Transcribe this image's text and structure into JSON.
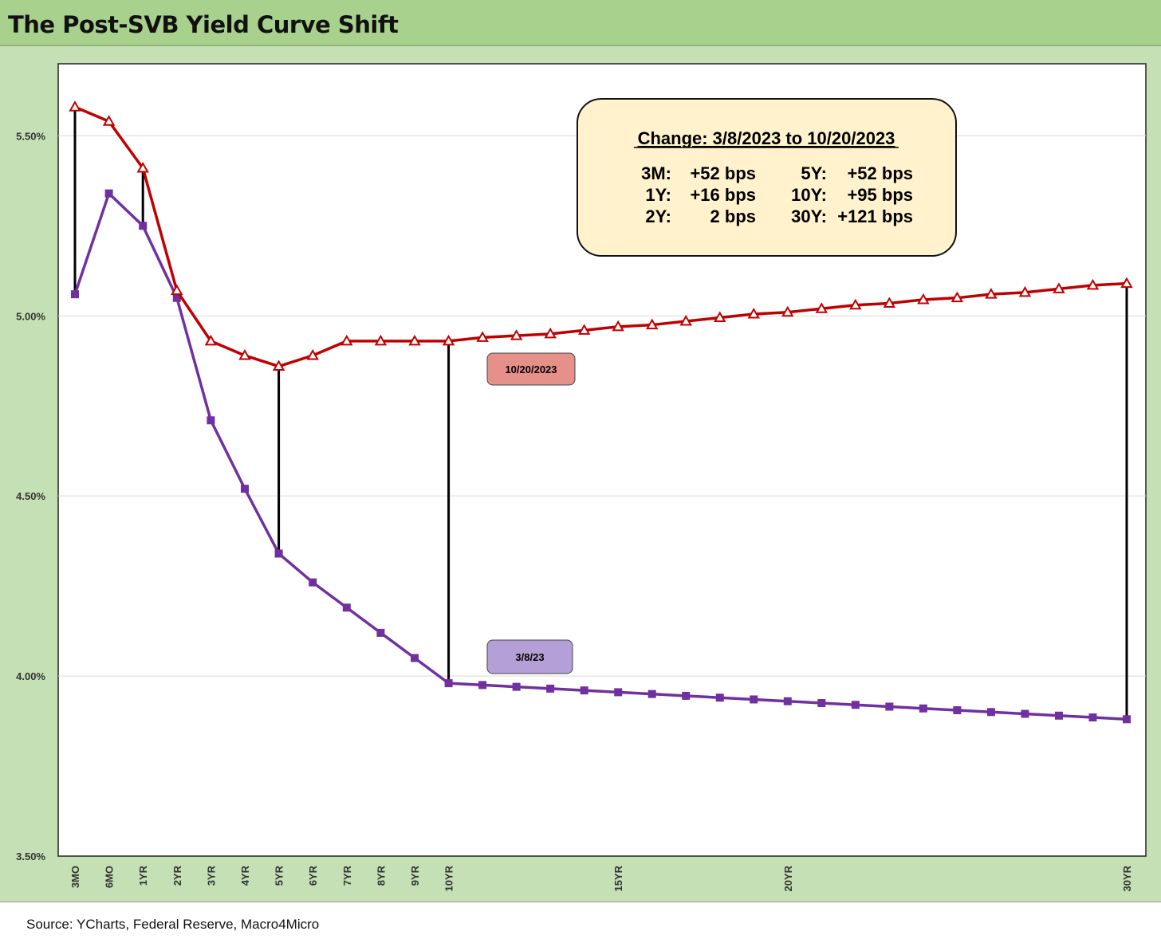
{
  "title": "The Post-SVB Yield Curve Shift",
  "source": "Source: YCharts, Federal Reserve, Macro4Micro",
  "colors": {
    "title_bg": "#a9d18e",
    "outer_bg": "#c5e0b4",
    "series_oct": "#c00000",
    "series_mar": "#7030a0",
    "annotation_bg": "#fff2cc",
    "tag_oct_bg": "#e6908a",
    "tag_mar_bg": "#b4a0d6"
  },
  "annotation": {
    "title": "Change: 3/8/2023 to 10/20/2023",
    "rows": [
      [
        "3M:",
        "+52 bps",
        "5Y:",
        "+52 bps"
      ],
      [
        "1Y:",
        "+16 bps",
        "10Y:",
        "+95 bps"
      ],
      [
        "2Y:",
        "2 bps",
        "30Y:",
        "+121 bps"
      ]
    ]
  },
  "chart_data": {
    "type": "line",
    "title": "The Post-SVB Yield Curve Shift",
    "grid": true,
    "ylim": [
      3.5,
      5.7
    ],
    "y_ticks": [
      "3.50%",
      "4.00%",
      "4.50%",
      "5.00%",
      "5.50%"
    ],
    "x": [
      "3MO",
      "6MO",
      "1YR",
      "2YR",
      "3YR",
      "4YR",
      "5YR",
      "6YR",
      "7YR",
      "8YR",
      "9YR",
      "10YR",
      "11YR",
      "12YR",
      "13YR",
      "14YR",
      "15YR",
      "16YR",
      "17YR",
      "18YR",
      "19YR",
      "20YR",
      "21YR",
      "22YR",
      "23YR",
      "24YR",
      "25YR",
      "26YR",
      "27YR",
      "28YR",
      "29YR",
      "30YR"
    ],
    "x_tick_labels_shown": [
      "3MO",
      "6MO",
      "1YR",
      "2YR",
      "3YR",
      "4YR",
      "5YR",
      "6YR",
      "7YR",
      "8YR",
      "9YR",
      "10YR",
      "15YR",
      "20YR",
      "30YR"
    ],
    "series": [
      {
        "name": "10/20/2023",
        "marker": "triangle",
        "values": [
          5.58,
          5.54,
          5.41,
          5.07,
          4.93,
          4.89,
          4.86,
          4.89,
          4.93,
          4.93,
          4.93,
          4.93,
          4.94,
          4.945,
          4.95,
          4.96,
          4.97,
          4.975,
          4.985,
          4.995,
          5.005,
          5.01,
          5.02,
          5.03,
          5.035,
          5.045,
          5.05,
          5.06,
          5.065,
          5.075,
          5.085,
          5.09
        ]
      },
      {
        "name": "3/8/23",
        "marker": "square",
        "values": [
          5.06,
          5.34,
          5.25,
          5.05,
          4.71,
          4.52,
          4.34,
          4.26,
          4.19,
          4.12,
          4.05,
          3.98,
          3.975,
          3.97,
          3.965,
          3.96,
          3.955,
          3.95,
          3.945,
          3.94,
          3.935,
          3.93,
          3.925,
          3.92,
          3.915,
          3.91,
          3.905,
          3.9,
          3.895,
          3.89,
          3.885,
          3.88
        ]
      }
    ],
    "spread_lines_at": [
      "3MO",
      "1YR",
      "5YR",
      "10YR",
      "30YR"
    ]
  }
}
